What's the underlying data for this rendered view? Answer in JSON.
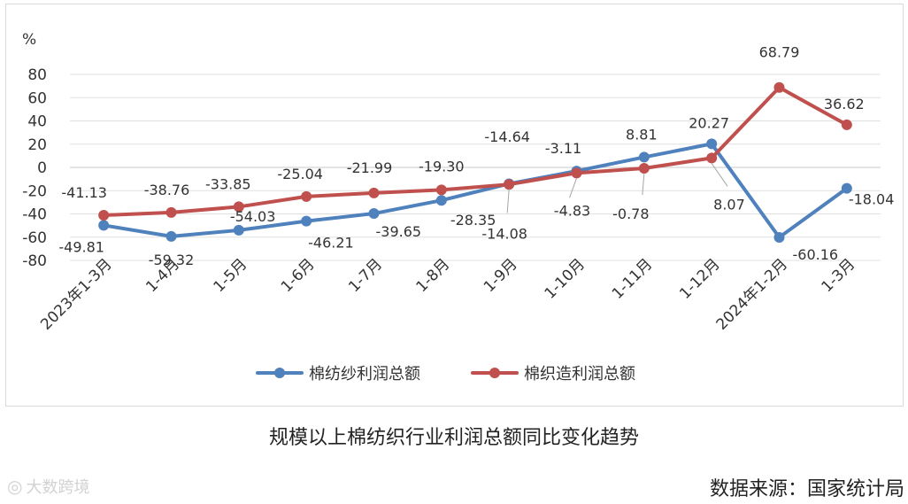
{
  "chart_data": {
    "type": "line",
    "yunit": "%",
    "ylim": [
      -80,
      80
    ],
    "yticks": [
      80,
      60,
      40,
      20,
      0,
      -20,
      -40,
      -60,
      -80
    ],
    "grid": true,
    "legend_position": "bottom",
    "categories": [
      "2023年1-3月",
      "1-4月",
      "1-5月",
      "1-6月",
      "1-7月",
      "1-8月",
      "1-9月",
      "1-10月",
      "1-11月",
      "1-12月",
      "2024年1-2月",
      "1-3月"
    ],
    "series": [
      {
        "name": "棉纺纱利润总额",
        "color": "#4f81bd",
        "values": [
          -49.81,
          -59.32,
          -54.03,
          -46.21,
          -39.65,
          -28.35,
          -14.08,
          -3.11,
          8.81,
          20.27,
          -60.16,
          -18.04
        ],
        "labels": [
          "-49.81",
          "-59.32",
          "-54.03",
          "-46.21",
          "-39.65",
          "-28.35",
          "-14.08",
          "-3.11",
          "8.81",
          "20.27",
          "-60.16",
          "-18.04"
        ]
      },
      {
        "name": "棉织造利润总额",
        "color": "#c0504d",
        "values": [
          -41.13,
          -38.76,
          -33.85,
          -25.04,
          -21.99,
          -19.3,
          -14.64,
          -4.83,
          -0.78,
          8.07,
          68.79,
          36.62
        ],
        "labels": [
          "-41.13",
          "-38.76",
          "-33.85",
          "-25.04",
          "-21.99",
          "-19.30",
          "-14.64",
          "-4.83",
          "-0.78",
          "8.07",
          "68.79",
          "36.62"
        ]
      }
    ]
  },
  "caption": "规模以上棉纺织行业利润总额同比变化趋势",
  "source": "数据来源：国家统计局",
  "watermark": "大数跨境"
}
